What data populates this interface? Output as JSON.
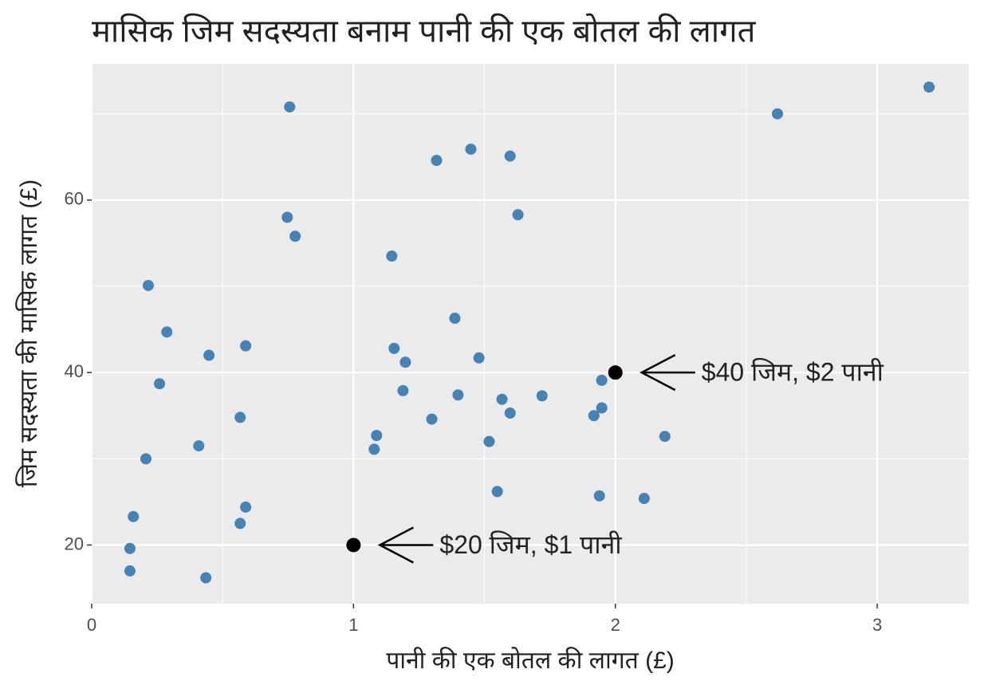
{
  "chart_data": {
    "type": "scatter",
    "title": "मासिक जिम सदस्यता बनाम पानी की एक बोतल की लागत",
    "x_label": "पानी की एक बोतल की लागत (£)",
    "y_label": "जिम सदस्यता की मासिक लागत (£)",
    "xlim": [
      0,
      3.35
    ],
    "ylim": [
      13.2,
      75.8
    ],
    "xticks": [
      0,
      1,
      2,
      3
    ],
    "yticks": [
      20,
      40,
      60
    ],
    "x_minor_breaks": [
      0.5,
      1.5,
      2.5
    ],
    "y_minor_breaks": [
      30,
      50,
      70
    ],
    "grid": true,
    "color": "#4682b4",
    "x": [
      0.756,
      0.216,
      0.287,
      0.448,
      0.588,
      0.259,
      0.567,
      0.409,
      0.207,
      0.159,
      0.146,
      0.146,
      0.436,
      0.567,
      0.588,
      0.747,
      0.777,
      1.317,
      1.448,
      1.598,
      1.628,
      1.146,
      1.387,
      1.155,
      1.198,
      1.479,
      1.189,
      1.399,
      1.567,
      1.72,
      1.598,
      1.299,
      1.088,
      1.079,
      1.518,
      1.549,
      1.948,
      1.948,
      1.918,
      1.939,
      2.11,
      2.189,
      2.619,
      3.198
    ],
    "y": [
      70.8,
      50.1,
      44.7,
      42.0,
      43.1,
      38.7,
      34.8,
      31.5,
      30.0,
      23.3,
      19.6,
      17.0,
      16.2,
      22.5,
      24.4,
      58.0,
      55.8,
      64.6,
      65.9,
      65.1,
      58.3,
      53.5,
      46.3,
      42.8,
      41.2,
      41.7,
      37.9,
      37.4,
      36.9,
      37.3,
      35.3,
      34.6,
      32.7,
      31.1,
      32.0,
      26.2,
      39.1,
      35.9,
      35.0,
      25.7,
      25.4,
      32.6,
      70.0,
      73.1
    ],
    "annotations": [
      {
        "text": "$20 जिम, $1 पानी",
        "x": 1,
        "y": 20,
        "color": "#000000"
      },
      {
        "text": "$40 जिम, $2 पानी",
        "x": 2,
        "y": 40,
        "color": "#000000"
      }
    ]
  }
}
